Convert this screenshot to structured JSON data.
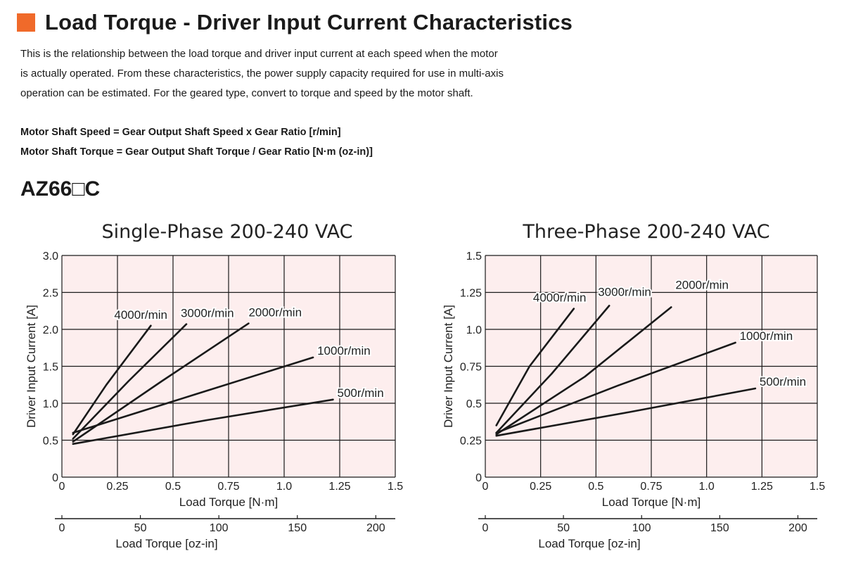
{
  "header": {
    "title": "Load Torque - Driver Input Current Characteristics",
    "accent_color": "#f06a2a"
  },
  "intro": {
    "lines": [
      "This is the relationship between the load torque and driver input current at each speed when the motor",
      "is actually operated. From these characteristics, the power supply capacity required for use in multi-axis",
      "operation can be estimated. For the geared type, convert to torque and speed by the motor shaft."
    ]
  },
  "formulas": {
    "speed": "Motor Shaft Speed = Gear Output Shaft Speed x Gear Ratio [r/min]",
    "torque": "Motor Shaft Torque = Gear Output Shaft Torque / Gear Ratio [N·m (oz-in)]"
  },
  "model": "AZ66□C",
  "style": {
    "plot_bg": "#fdeeee",
    "grid": "#1a1a1a",
    "line": "#1a1a1a"
  },
  "chart_data": [
    {
      "type": "line",
      "title": "Single-Phase 200-240 VAC",
      "xlabel": "Load Torque [N·m]",
      "ylabel": "Driver Input Current [A]",
      "xlim": [
        0,
        1.5
      ],
      "ylim": [
        0,
        3.0
      ],
      "xticks": [
        "0",
        "0.25",
        "0.5",
        "0.75",
        "1.0",
        "1.25",
        "1.5"
      ],
      "yticks": [
        "0",
        "0.5",
        "1.0",
        "1.5",
        "2.0",
        "2.5",
        "3.0"
      ],
      "x2label": "Load Torque [oz-in]",
      "x2ticks": [
        "0",
        "50",
        "100",
        "150",
        "200"
      ],
      "x2lim": [
        0,
        212.4
      ],
      "grid": true,
      "series": [
        {
          "name": "4000r/min",
          "x": [
            0.05,
            0.2,
            0.4
          ],
          "y": [
            0.58,
            1.25,
            2.05
          ]
        },
        {
          "name": "3000r/min",
          "x": [
            0.05,
            0.3,
            0.56
          ],
          "y": [
            0.52,
            1.3,
            2.07
          ]
        },
        {
          "name": "2000r/min",
          "x": [
            0.05,
            0.45,
            0.84
          ],
          "y": [
            0.48,
            1.3,
            2.08
          ]
        },
        {
          "name": "1000r/min",
          "x": [
            0.05,
            0.6,
            1.13
          ],
          "y": [
            0.6,
            1.12,
            1.62
          ]
        },
        {
          "name": "500r/min",
          "x": [
            0.05,
            0.65,
            1.22
          ],
          "y": [
            0.45,
            0.77,
            1.05
          ]
        }
      ]
    },
    {
      "type": "line",
      "title": "Three-Phase 200-240 VAC",
      "xlabel": "Load Torque [N·m]",
      "ylabel": "Driver Input Current [A]",
      "xlim": [
        0,
        1.5
      ],
      "ylim": [
        0,
        1.5
      ],
      "xticks": [
        "0",
        "0.25",
        "0.5",
        "0.75",
        "1.0",
        "1.25",
        "1.5"
      ],
      "yticks": [
        "0",
        "0.25",
        "0.5",
        "0.75",
        "1.0",
        "1.25",
        "1.5"
      ],
      "x2label": "Load Torque [oz-in]",
      "x2ticks": [
        "0",
        "50",
        "100",
        "150",
        "200"
      ],
      "x2lim": [
        0,
        212.4
      ],
      "grid": true,
      "series": [
        {
          "name": "4000r/min",
          "x": [
            0.05,
            0.2,
            0.4
          ],
          "y": [
            0.35,
            0.75,
            1.14
          ]
        },
        {
          "name": "3000r/min",
          "x": [
            0.05,
            0.3,
            0.56
          ],
          "y": [
            0.3,
            0.7,
            1.16
          ]
        },
        {
          "name": "2000r/min",
          "x": [
            0.05,
            0.45,
            0.84
          ],
          "y": [
            0.29,
            0.68,
            1.15
          ]
        },
        {
          "name": "1000r/min",
          "x": [
            0.05,
            0.6,
            1.13
          ],
          "y": [
            0.3,
            0.62,
            0.91
          ]
        },
        {
          "name": "500r/min",
          "x": [
            0.05,
            0.65,
            1.22
          ],
          "y": [
            0.28,
            0.44,
            0.6
          ]
        }
      ]
    }
  ]
}
